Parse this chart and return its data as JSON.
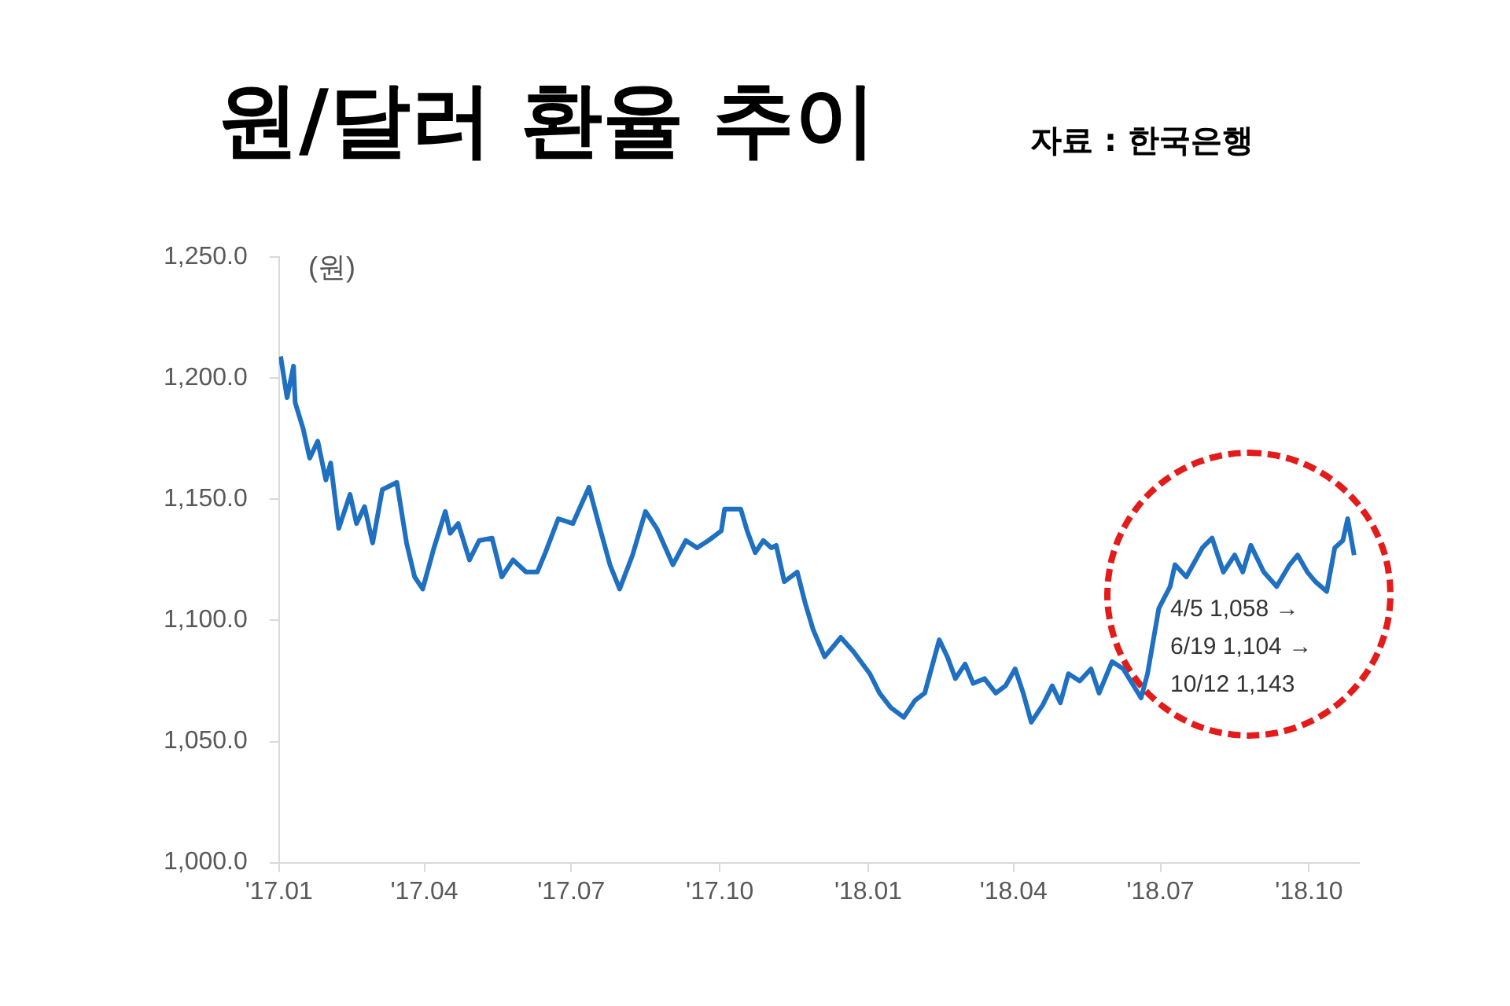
{
  "chart_data": {
    "type": "line",
    "title": "원/달러 환율 추이",
    "ylabel": "(원)",
    "annotations": [
      "자료 : 한국은행",
      "4/5 1,058 →",
      "6/19 1,104 →",
      "10/12 1,143"
    ],
    "x": [
      "2017-01-02",
      "2017-01-06",
      "2017-01-10",
      "2017-01-11",
      "2017-01-16",
      "2017-01-20",
      "2017-01-25",
      "2017-01-30",
      "2017-02-02",
      "2017-02-07",
      "2017-02-14",
      "2017-02-18",
      "2017-02-23",
      "2017-02-28",
      "2017-03-06",
      "2017-03-15",
      "2017-03-21",
      "2017-03-26",
      "2017-03-31",
      "2017-04-07",
      "2017-04-14",
      "2017-04-17",
      "2017-04-22",
      "2017-04-29",
      "2017-05-05",
      "2017-05-13",
      "2017-05-19",
      "2017-05-26",
      "2017-06-03",
      "2017-06-10",
      "2017-06-15",
      "2017-06-23",
      "2017-07-02",
      "2017-07-12",
      "2017-07-18",
      "2017-07-25",
      "2017-07-31",
      "2017-08-08",
      "2017-08-16",
      "2017-08-23",
      "2017-09-02",
      "2017-09-10",
      "2017-09-17",
      "2017-09-24",
      "2017-10-02",
      "2017-10-04",
      "2017-10-14",
      "2017-10-18",
      "2017-10-23",
      "2017-10-28",
      "2017-11-02",
      "2017-11-05",
      "2017-11-10",
      "2017-11-18",
      "2017-11-23",
      "2017-11-28",
      "2017-12-05",
      "2017-12-15",
      "2017-12-23",
      "2018-01-02",
      "2018-01-08",
      "2018-01-15",
      "2018-01-23",
      "2018-01-30",
      "2018-02-05",
      "2018-02-14",
      "2018-02-19",
      "2018-02-24",
      "2018-03-02",
      "2018-03-07",
      "2018-03-14",
      "2018-03-21",
      "2018-03-27",
      "2018-04-02",
      "2018-04-07",
      "2018-04-12",
      "2018-04-19",
      "2018-04-25",
      "2018-04-30",
      "2018-05-05",
      "2018-05-12",
      "2018-05-19",
      "2018-05-24",
      "2018-06-01",
      "2018-06-08",
      "2018-06-19",
      "2018-06-23",
      "2018-06-30",
      "2018-07-07",
      "2018-07-10",
      "2018-07-17",
      "2018-07-27",
      "2018-08-02",
      "2018-08-09",
      "2018-08-16",
      "2018-08-21",
      "2018-08-26",
      "2018-09-03",
      "2018-09-11",
      "2018-09-19",
      "2018-09-24",
      "2018-09-30",
      "2018-10-05",
      "2018-10-12",
      "2018-10-17",
      "2018-10-22",
      "2018-10-25",
      "2018-10-29"
    ],
    "series": [
      {
        "color": "#1f70c1",
        "values": [
          1209,
          1192,
          1205,
          1190,
          1179,
          1167,
          1174,
          1158,
          1165,
          1138,
          1152,
          1140,
          1147,
          1132,
          1154,
          1157,
          1132,
          1118,
          1113,
          1130,
          1145,
          1136,
          1140,
          1125,
          1133,
          1134,
          1118,
          1125,
          1120,
          1120,
          1128,
          1142,
          1140,
          1155,
          1140,
          1123,
          1113,
          1127,
          1145,
          1138,
          1123,
          1133,
          1130,
          1133,
          1137,
          1146,
          1146,
          1137,
          1128,
          1133,
          1130,
          1131,
          1116,
          1120,
          1107,
          1096,
          1085,
          1093,
          1087,
          1078,
          1070,
          1064,
          1060,
          1067,
          1070,
          1092,
          1085,
          1076,
          1082,
          1074,
          1076,
          1070,
          1073,
          1080,
          1070,
          1058,
          1065,
          1073,
          1066,
          1078,
          1075,
          1080,
          1070,
          1083,
          1080,
          1068,
          1078,
          1105,
          1114,
          1123,
          1118,
          1130,
          1134,
          1120,
          1127,
          1120,
          1131,
          1120,
          1114,
          1123,
          1127,
          1120,
          1116,
          1112,
          1130,
          1133,
          1142,
          1127
        ]
      }
    ],
    "xlim": [
      "2017-01",
      "2018-11"
    ],
    "xticks": [
      {
        "value": "2017-01",
        "label": "'17.01"
      },
      {
        "value": "2017-04",
        "label": "'17.04"
      },
      {
        "value": "2017-07",
        "label": "'17.07"
      },
      {
        "value": "2017-10",
        "label": "'17.10"
      },
      {
        "value": "2018-01",
        "label": "'18.01"
      },
      {
        "value": "2018-04",
        "label": "'18.04"
      },
      {
        "value": "2018-07",
        "label": "'18.07"
      },
      {
        "value": "2018-10",
        "label": "'18.10"
      }
    ],
    "ylim": [
      1000,
      1250
    ],
    "yticks": [
      {
        "value": 1000,
        "label": "1,000.0"
      },
      {
        "value": 1050,
        "label": "1,050.0"
      },
      {
        "value": 1100,
        "label": "1,100.0"
      },
      {
        "value": 1150,
        "label": "1,150.0"
      },
      {
        "value": 1200,
        "label": "1,200.0"
      },
      {
        "value": 1250,
        "label": "1,250.0"
      }
    ],
    "grid": false,
    "legend": false,
    "marker": "none",
    "line_style": "solid"
  }
}
